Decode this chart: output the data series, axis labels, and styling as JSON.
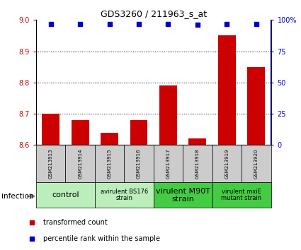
{
  "title": "GDS3260 / 211963_s_at",
  "samples": [
    "GSM213913",
    "GSM213914",
    "GSM213915",
    "GSM213916",
    "GSM213917",
    "GSM213918",
    "GSM213919",
    "GSM213920"
  ],
  "bar_values": [
    8.7,
    8.68,
    8.64,
    8.68,
    8.79,
    8.62,
    8.95,
    8.85
  ],
  "percentile_values": [
    97,
    97,
    97,
    97,
    97,
    96,
    97,
    97
  ],
  "ylim_left": [
    8.6,
    9.0
  ],
  "ylim_right": [
    0,
    100
  ],
  "yticks_left": [
    8.6,
    8.7,
    8.8,
    8.9,
    9.0
  ],
  "yticks_right": [
    0,
    25,
    50,
    75,
    100
  ],
  "bar_color": "#cc0000",
  "dot_color": "#0000cc",
  "bar_width": 0.6,
  "group_spans": [
    {
      "start": 0,
      "end": 1,
      "label": "control",
      "color": "#bbeebb",
      "fontsize": 8
    },
    {
      "start": 2,
      "end": 3,
      "label": "avirulent BS176\nstrain",
      "color": "#bbeebb",
      "fontsize": 6
    },
    {
      "start": 4,
      "end": 5,
      "label": "virulent M90T\nstrain",
      "color": "#44cc44",
      "fontsize": 8
    },
    {
      "start": 6,
      "end": 7,
      "label": "virulent mxiE\nmutant strain",
      "color": "#44cc44",
      "fontsize": 6
    }
  ],
  "left_axis_color": "#cc0000",
  "right_axis_color": "#0000cc",
  "background_color": "#ffffff",
  "sample_bg_color": "#cccccc",
  "grid_yticks": [
    8.7,
    8.8,
    8.9
  ]
}
